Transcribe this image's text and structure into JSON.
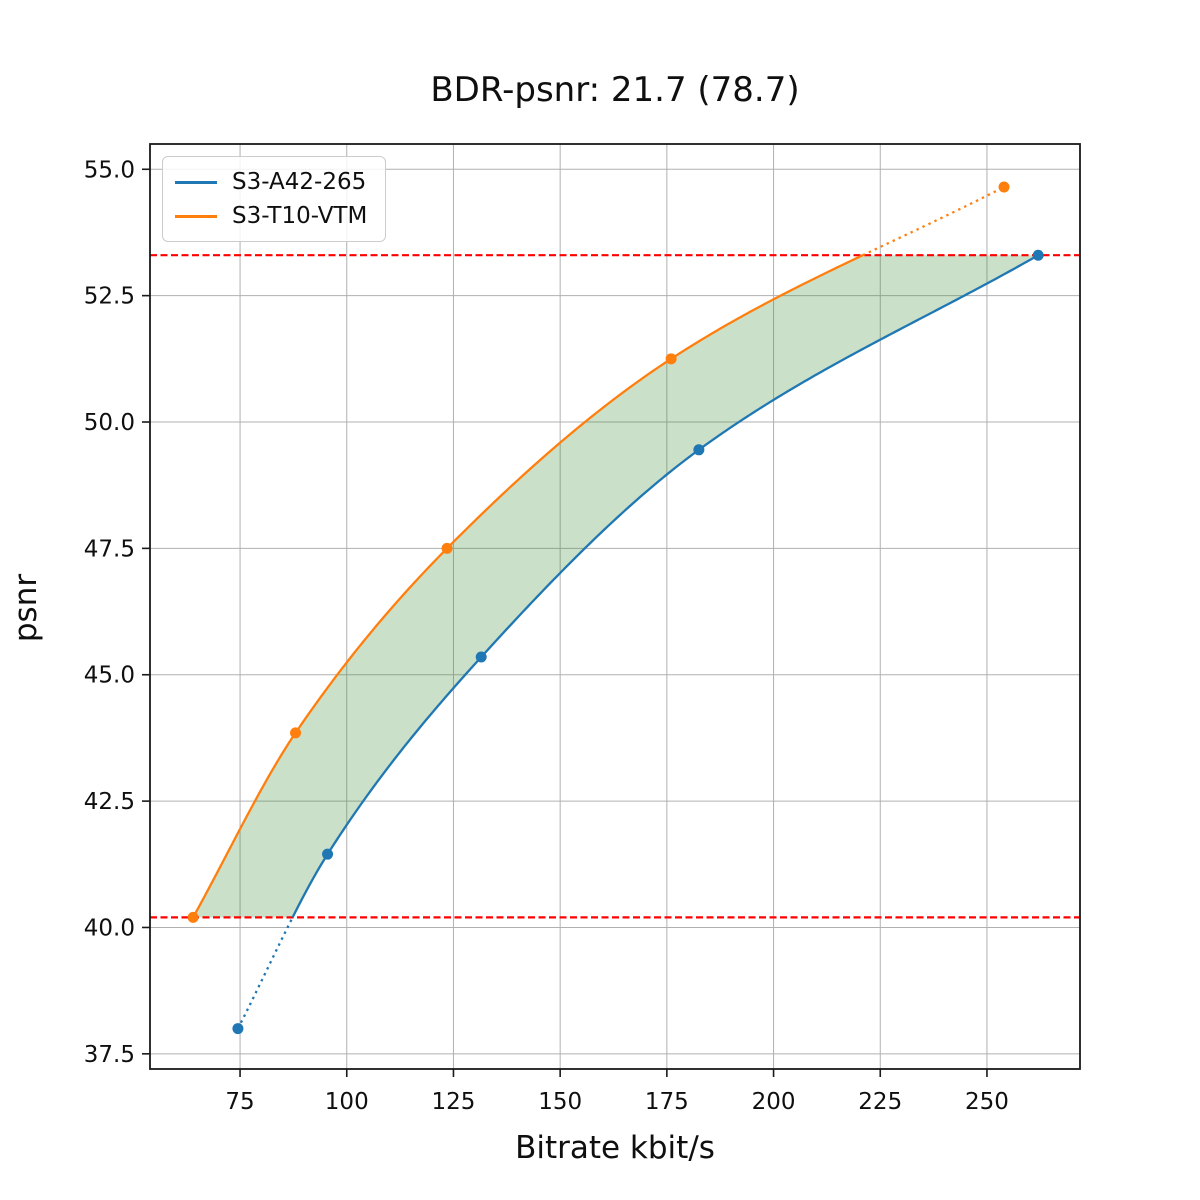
{
  "chart_data": {
    "type": "line",
    "title": "BDR-psnr: 21.7 (78.7)",
    "xlabel": "Bitrate kbit/s",
    "ylabel": "psnr",
    "xlim": [
      53.9,
      271.8
    ],
    "ylim": [
      37.2,
      55.5
    ],
    "x_ticks": [
      75,
      100,
      125,
      150,
      175,
      200,
      225,
      250
    ],
    "x_tick_labels": [
      "75",
      "100",
      "125",
      "150",
      "175",
      "200",
      "225",
      "250"
    ],
    "y_ticks": [
      37.5,
      40.0,
      42.5,
      45.0,
      47.5,
      50.0,
      52.5,
      55.0
    ],
    "y_tick_labels": [
      "37.5",
      "40.0",
      "42.5",
      "45.0",
      "47.5",
      "50.0",
      "52.5",
      "55.0"
    ],
    "grid": true,
    "legend": {
      "position": "upper left",
      "entries": [
        "S3-A42-265",
        "S3-T10-VTM"
      ]
    },
    "series": [
      {
        "name": "S3-A42-265",
        "color": "#1f77b4",
        "marker": "circle",
        "points": [
          [
            74.5,
            38.0
          ],
          [
            95.5,
            41.45
          ],
          [
            131.5,
            45.35
          ],
          [
            182.5,
            49.45
          ],
          [
            262.0,
            53.3
          ]
        ]
      },
      {
        "name": "S3-T10-VTM",
        "color": "#ff7f0e",
        "marker": "circle",
        "points": [
          [
            64.0,
            40.2
          ],
          [
            88.0,
            43.85
          ],
          [
            123.5,
            47.5
          ],
          [
            176.0,
            51.25
          ],
          [
            254.0,
            54.65
          ]
        ]
      }
    ],
    "reference_lines": [
      {
        "y": 40.2,
        "color": "#ff0000",
        "style": "dashed"
      },
      {
        "y": 53.3,
        "color": "#ff0000",
        "style": "dashed"
      }
    ],
    "overlap_band": {
      "y_min": 40.2,
      "y_max": 53.3,
      "fill_color": "#3c8c32",
      "fill_opacity": 0.27
    },
    "line_style_outside_band": "dotted"
  },
  "colors": {
    "grid": "#b0b0b0",
    "spine": "#1a1a1a",
    "text": "#0f0f0f",
    "background": "#ffffff"
  }
}
